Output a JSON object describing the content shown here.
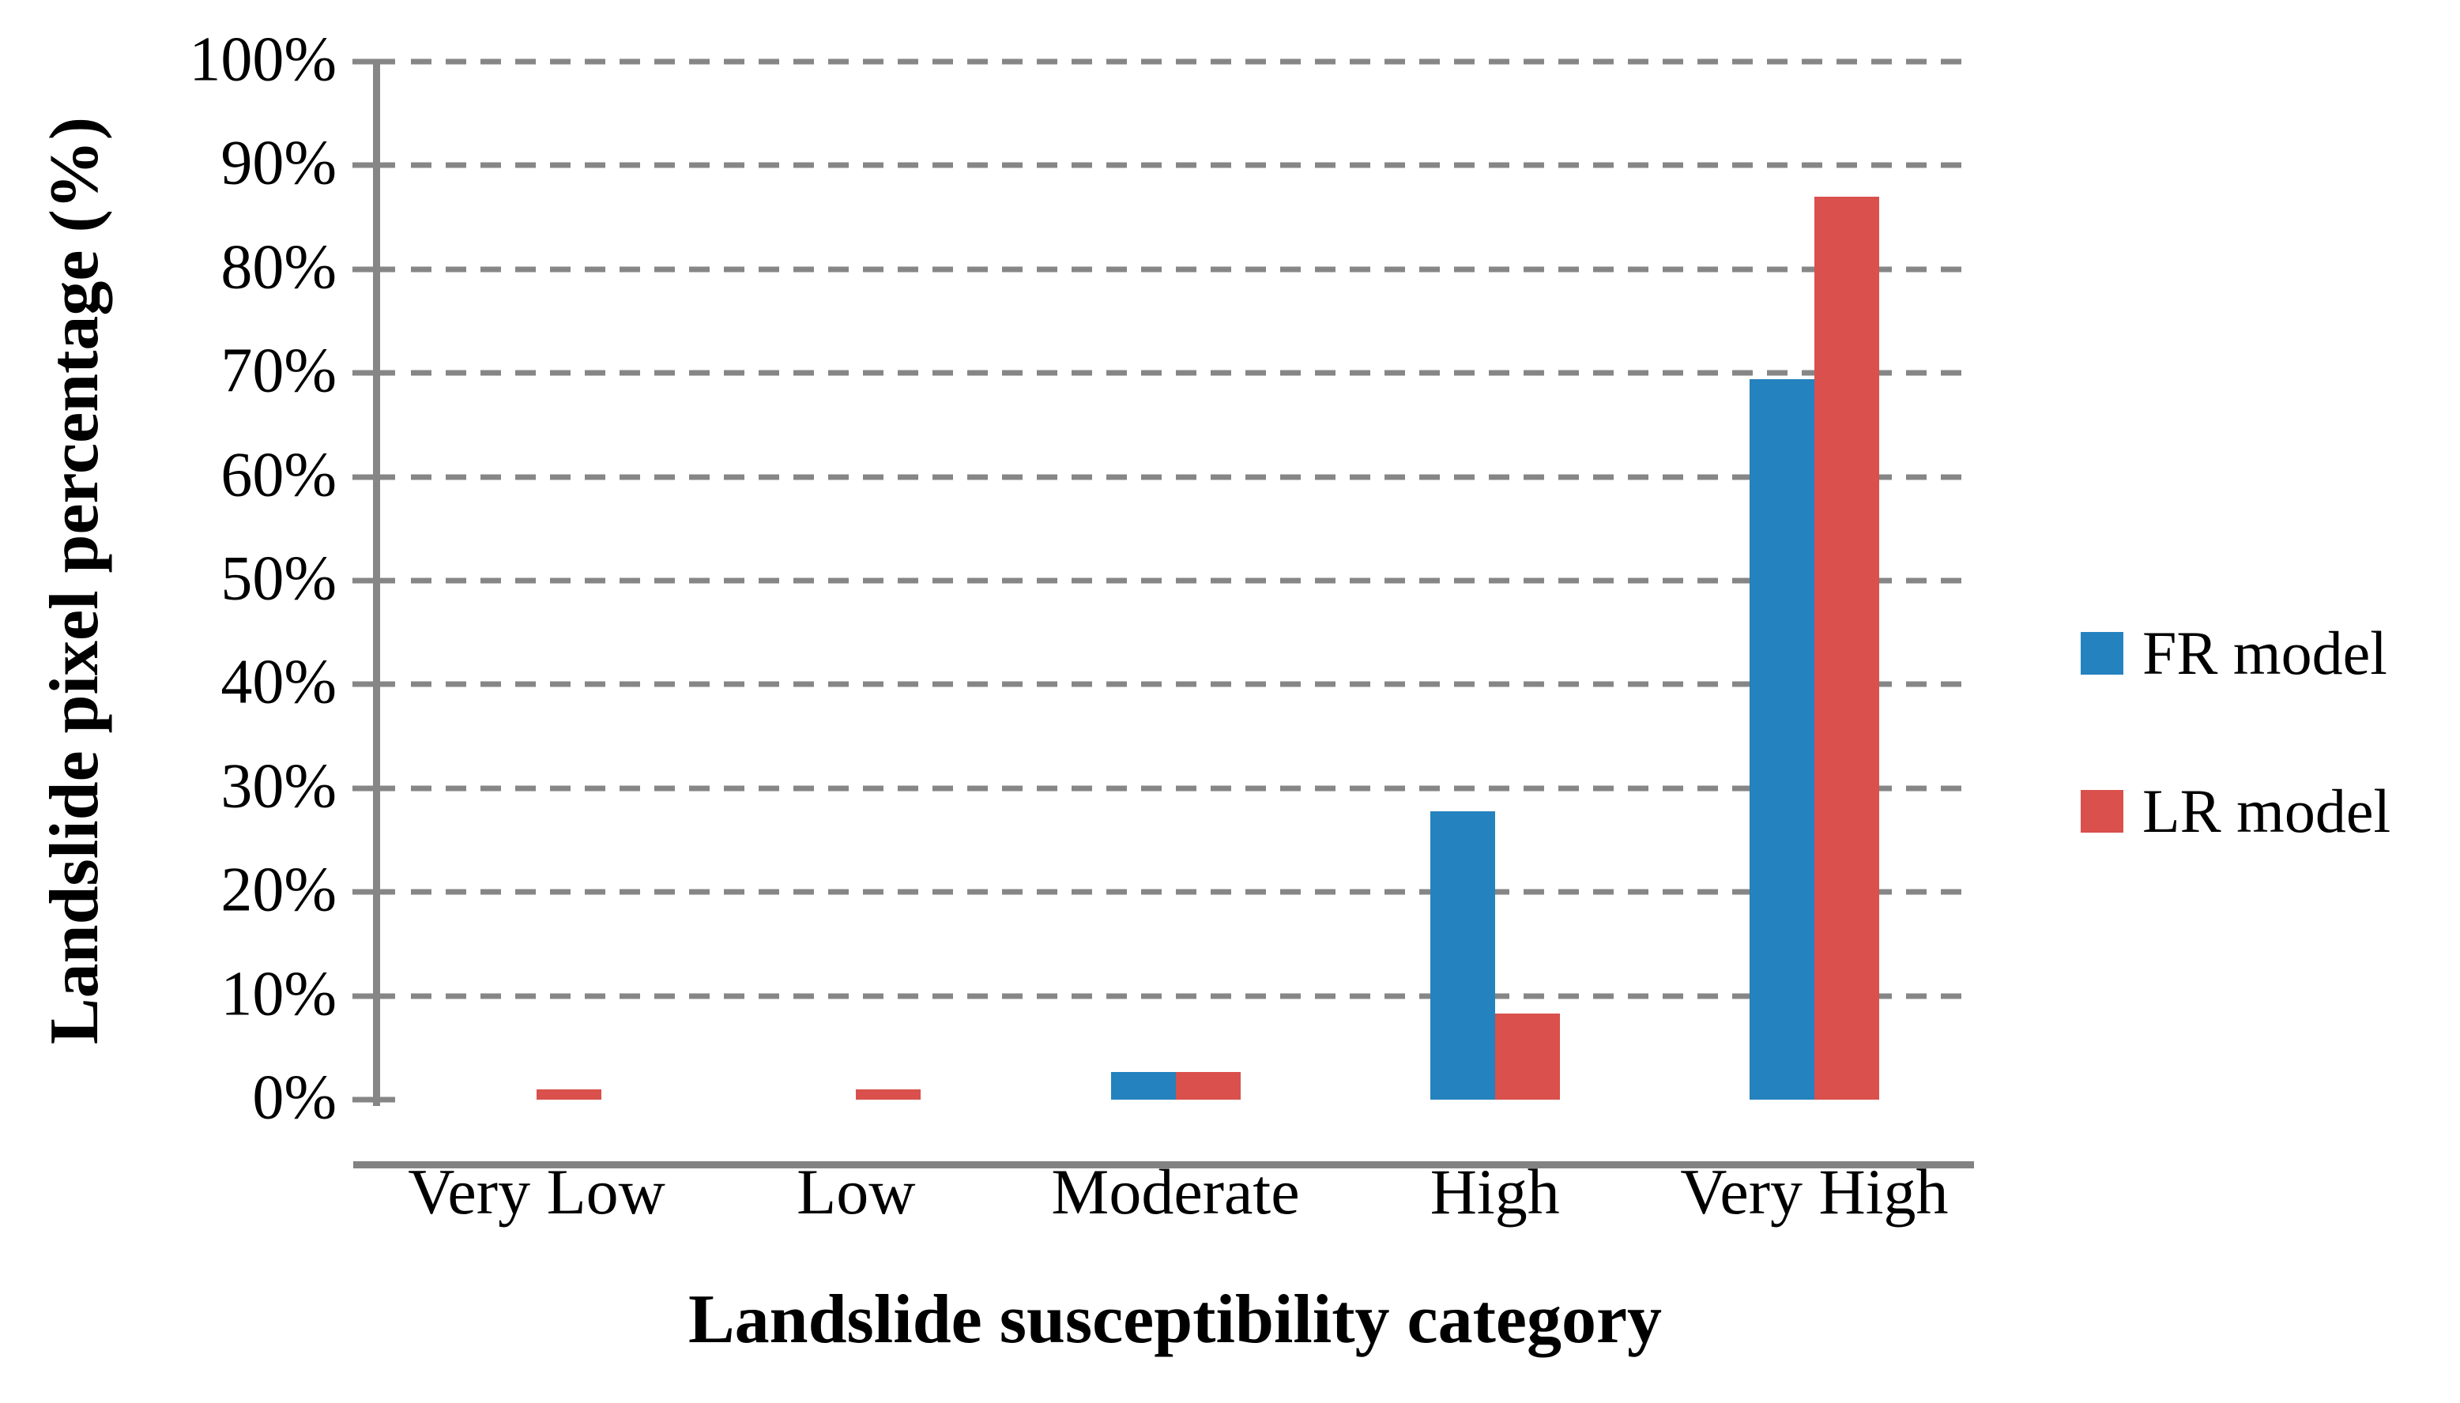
{
  "chart_data": {
    "type": "bar",
    "title": "",
    "xlabel": "Landslide susceptibility category",
    "ylabel": "Landslide pixel percentage (%)",
    "categories": [
      "Very Low",
      "Low",
      "Moderate",
      "High",
      "Very High"
    ],
    "series": [
      {
        "name": "FR model",
        "color": "#2482BE",
        "values": [
          0,
          0,
          2.7,
          27.8,
          69.4
        ]
      },
      {
        "name": "LR model",
        "color": "#D9504C",
        "values": [
          1.0,
          1.0,
          2.7,
          8.3,
          87.0
        ]
      }
    ],
    "y_axis": {
      "min": 0,
      "max": 100,
      "step": 10,
      "tick_labels": [
        "0%",
        "10%",
        "20%",
        "30%",
        "40%",
        "50%",
        "60%",
        "70%",
        "80%",
        "90%",
        "100%"
      ]
    },
    "grid": {
      "horizontal": true,
      "style": "dashed",
      "color": "#868686"
    },
    "legend": {
      "position": "right",
      "labels": [
        "FR model",
        "LR model"
      ]
    },
    "axis_color": "#868686"
  }
}
